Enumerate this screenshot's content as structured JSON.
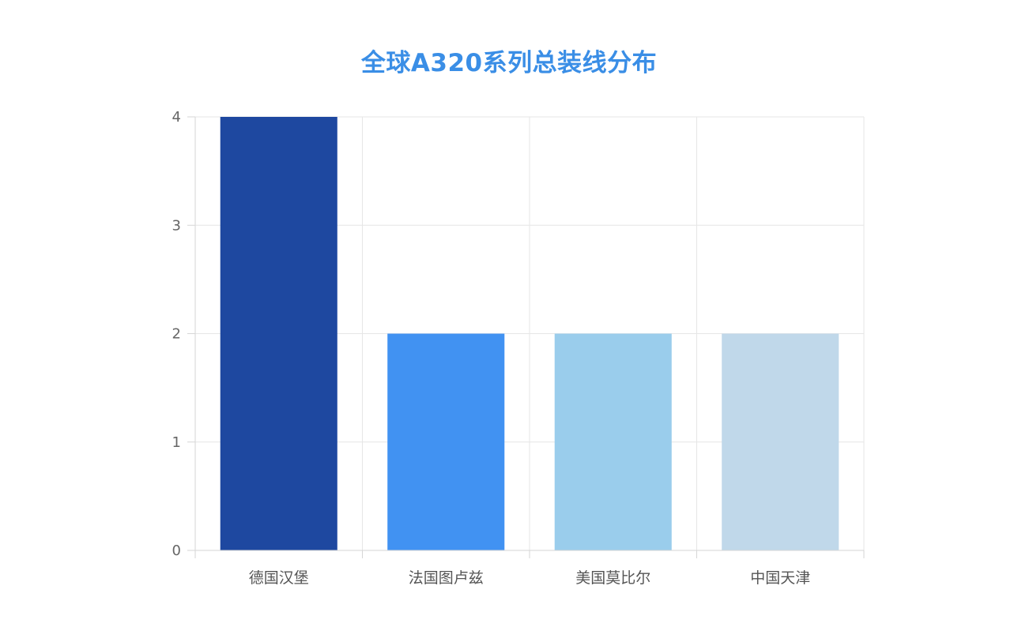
{
  "chart_data": {
    "type": "bar",
    "title": "全球A320系列总装线分布",
    "xlabel": "",
    "ylabel": "",
    "categories": [
      "德国汉堡",
      "法国图卢兹",
      "美国莫比尔",
      "中国天津"
    ],
    "values": [
      4,
      2,
      2,
      2
    ],
    "colors": [
      "#1e48a0",
      "#4192f2",
      "#9acdec",
      "#c0d8ea"
    ],
    "ylim": [
      0,
      4
    ],
    "yticks": [
      0,
      1,
      2,
      3,
      4
    ],
    "grid": true,
    "legend": "none"
  }
}
